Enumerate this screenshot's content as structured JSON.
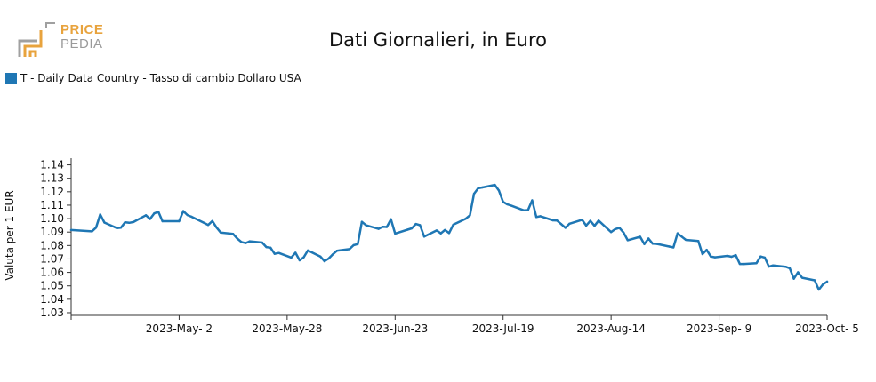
{
  "logo": {
    "line1": "PRICE",
    "line2": "PEDIA"
  },
  "title": "Dati Giornalieri, in Euro",
  "legend": {
    "label": "T - Daily Data Country - Tasso di cambio Dollaro USA",
    "color": "#1f77b4"
  },
  "chart_data": {
    "type": "line",
    "title": "Dati Giornalieri, in Euro",
    "xlabel": "",
    "ylabel": "Valuta per 1 EUR",
    "ylim": [
      1.028,
      1.145
    ],
    "xlim": [
      "2023-04-06",
      "2023-10-05"
    ],
    "grid": false,
    "legend_position": "top-left",
    "y_ticks": [
      1.03,
      1.04,
      1.05,
      1.06,
      1.07,
      1.08,
      1.09,
      1.1,
      1.11,
      1.12,
      1.13,
      1.14
    ],
    "x_ticks": [
      {
        "date": "2023-05-02",
        "label": "2023-May- 2"
      },
      {
        "date": "2023-05-28",
        "label": "2023-May-28"
      },
      {
        "date": "2023-06-23",
        "label": "2023-Jun-23"
      },
      {
        "date": "2023-07-19",
        "label": "2023-Jul-19"
      },
      {
        "date": "2023-08-14",
        "label": "2023-Aug-14"
      },
      {
        "date": "2023-09-09",
        "label": "2023-Sep- 9"
      },
      {
        "date": "2023-10-05",
        "label": "2023-Oct- 5"
      }
    ],
    "series": [
      {
        "name": "T - Daily Data Country - Tasso di cambio Dollaro USA",
        "color": "#1f77b4",
        "x": [
          "2023-04-06",
          "2023-04-11",
          "2023-04-12",
          "2023-04-13",
          "2023-04-14",
          "2023-04-17",
          "2023-04-18",
          "2023-04-19",
          "2023-04-20",
          "2023-04-21",
          "2023-04-24",
          "2023-04-25",
          "2023-04-26",
          "2023-04-27",
          "2023-04-28",
          "2023-05-02",
          "2023-05-03",
          "2023-05-04",
          "2023-05-05",
          "2023-05-08",
          "2023-05-09",
          "2023-05-10",
          "2023-05-11",
          "2023-05-12",
          "2023-05-15",
          "2023-05-16",
          "2023-05-17",
          "2023-05-18",
          "2023-05-19",
          "2023-05-22",
          "2023-05-23",
          "2023-05-24",
          "2023-05-25",
          "2023-05-26",
          "2023-05-29",
          "2023-05-30",
          "2023-05-31",
          "2023-06-01",
          "2023-06-02",
          "2023-06-05",
          "2023-06-06",
          "2023-06-07",
          "2023-06-08",
          "2023-06-09",
          "2023-06-12",
          "2023-06-13",
          "2023-06-14",
          "2023-06-15",
          "2023-06-16",
          "2023-06-19",
          "2023-06-20",
          "2023-06-21",
          "2023-06-22",
          "2023-06-23",
          "2023-06-26",
          "2023-06-27",
          "2023-06-28",
          "2023-06-29",
          "2023-06-30",
          "2023-07-03",
          "2023-07-04",
          "2023-07-05",
          "2023-07-06",
          "2023-07-07",
          "2023-07-10",
          "2023-07-11",
          "2023-07-12",
          "2023-07-13",
          "2023-07-14",
          "2023-07-17",
          "2023-07-18",
          "2023-07-19",
          "2023-07-20",
          "2023-07-21",
          "2023-07-24",
          "2023-07-25",
          "2023-07-26",
          "2023-07-27",
          "2023-07-28",
          "2023-07-31",
          "2023-08-01",
          "2023-08-02",
          "2023-08-03",
          "2023-08-04",
          "2023-08-07",
          "2023-08-08",
          "2023-08-09",
          "2023-08-10",
          "2023-08-11",
          "2023-08-14",
          "2023-08-15",
          "2023-08-16",
          "2023-08-17",
          "2023-08-18",
          "2023-08-21",
          "2023-08-22",
          "2023-08-23",
          "2023-08-24",
          "2023-08-25",
          "2023-08-28",
          "2023-08-29",
          "2023-08-30",
          "2023-08-31",
          "2023-09-01",
          "2023-09-04",
          "2023-09-05",
          "2023-09-06",
          "2023-09-07",
          "2023-09-08",
          "2023-09-11",
          "2023-09-12",
          "2023-09-13",
          "2023-09-14",
          "2023-09-15",
          "2023-09-18",
          "2023-09-19",
          "2023-09-20",
          "2023-09-21",
          "2023-09-22",
          "2023-09-25",
          "2023-09-26",
          "2023-09-27",
          "2023-09-28",
          "2023-09-29",
          "2023-10-02",
          "2023-10-03",
          "2023-10-04",
          "2023-10-05"
        ],
        "values": [
          1.0915,
          1.0905,
          1.0933,
          1.1031,
          1.0971,
          1.093,
          1.0933,
          1.0973,
          1.0969,
          1.0975,
          1.1025,
          1.0997,
          1.1039,
          1.1051,
          1.0981,
          1.0981,
          1.1056,
          1.1026,
          1.1014,
          1.0968,
          1.0953,
          1.0982,
          1.0934,
          1.0897,
          1.0886,
          1.0852,
          1.0826,
          1.0818,
          1.0831,
          1.0822,
          1.0788,
          1.0784,
          1.0738,
          1.0745,
          1.071,
          1.0747,
          1.069,
          1.0712,
          1.0763,
          1.0718,
          1.0683,
          1.0703,
          1.0734,
          1.0761,
          1.0773,
          1.0802,
          1.0811,
          1.0976,
          1.095,
          1.0924,
          1.094,
          1.0938,
          1.0995,
          1.0889,
          1.0918,
          1.0928,
          1.096,
          1.0951,
          1.0866,
          1.0912,
          1.089,
          1.0915,
          1.0893,
          1.0955,
          1.0999,
          1.1024,
          1.1185,
          1.1226,
          1.1232,
          1.1251,
          1.1209,
          1.1125,
          1.1106,
          1.1096,
          1.1061,
          1.1063,
          1.1136,
          1.1012,
          1.1018,
          1.0987,
          1.0985,
          1.0959,
          1.0932,
          1.0962,
          1.0991,
          1.0948,
          1.0983,
          1.0946,
          1.0985,
          1.09,
          1.0922,
          1.0932,
          1.0896,
          1.0839,
          1.0865,
          1.081,
          1.0852,
          1.0814,
          1.0812,
          1.0792,
          1.0786,
          1.0891,
          1.0866,
          1.0842,
          1.0834,
          1.0736,
          1.0768,
          1.0718,
          1.0712,
          1.0723,
          1.0716,
          1.0728,
          1.0663,
          1.0663,
          1.0669,
          1.0718,
          1.071,
          1.0643,
          1.0652,
          1.0642,
          1.0631,
          1.0553,
          1.0601,
          1.056,
          1.0541,
          1.0472,
          1.0511,
          1.0531
        ]
      }
    ]
  }
}
